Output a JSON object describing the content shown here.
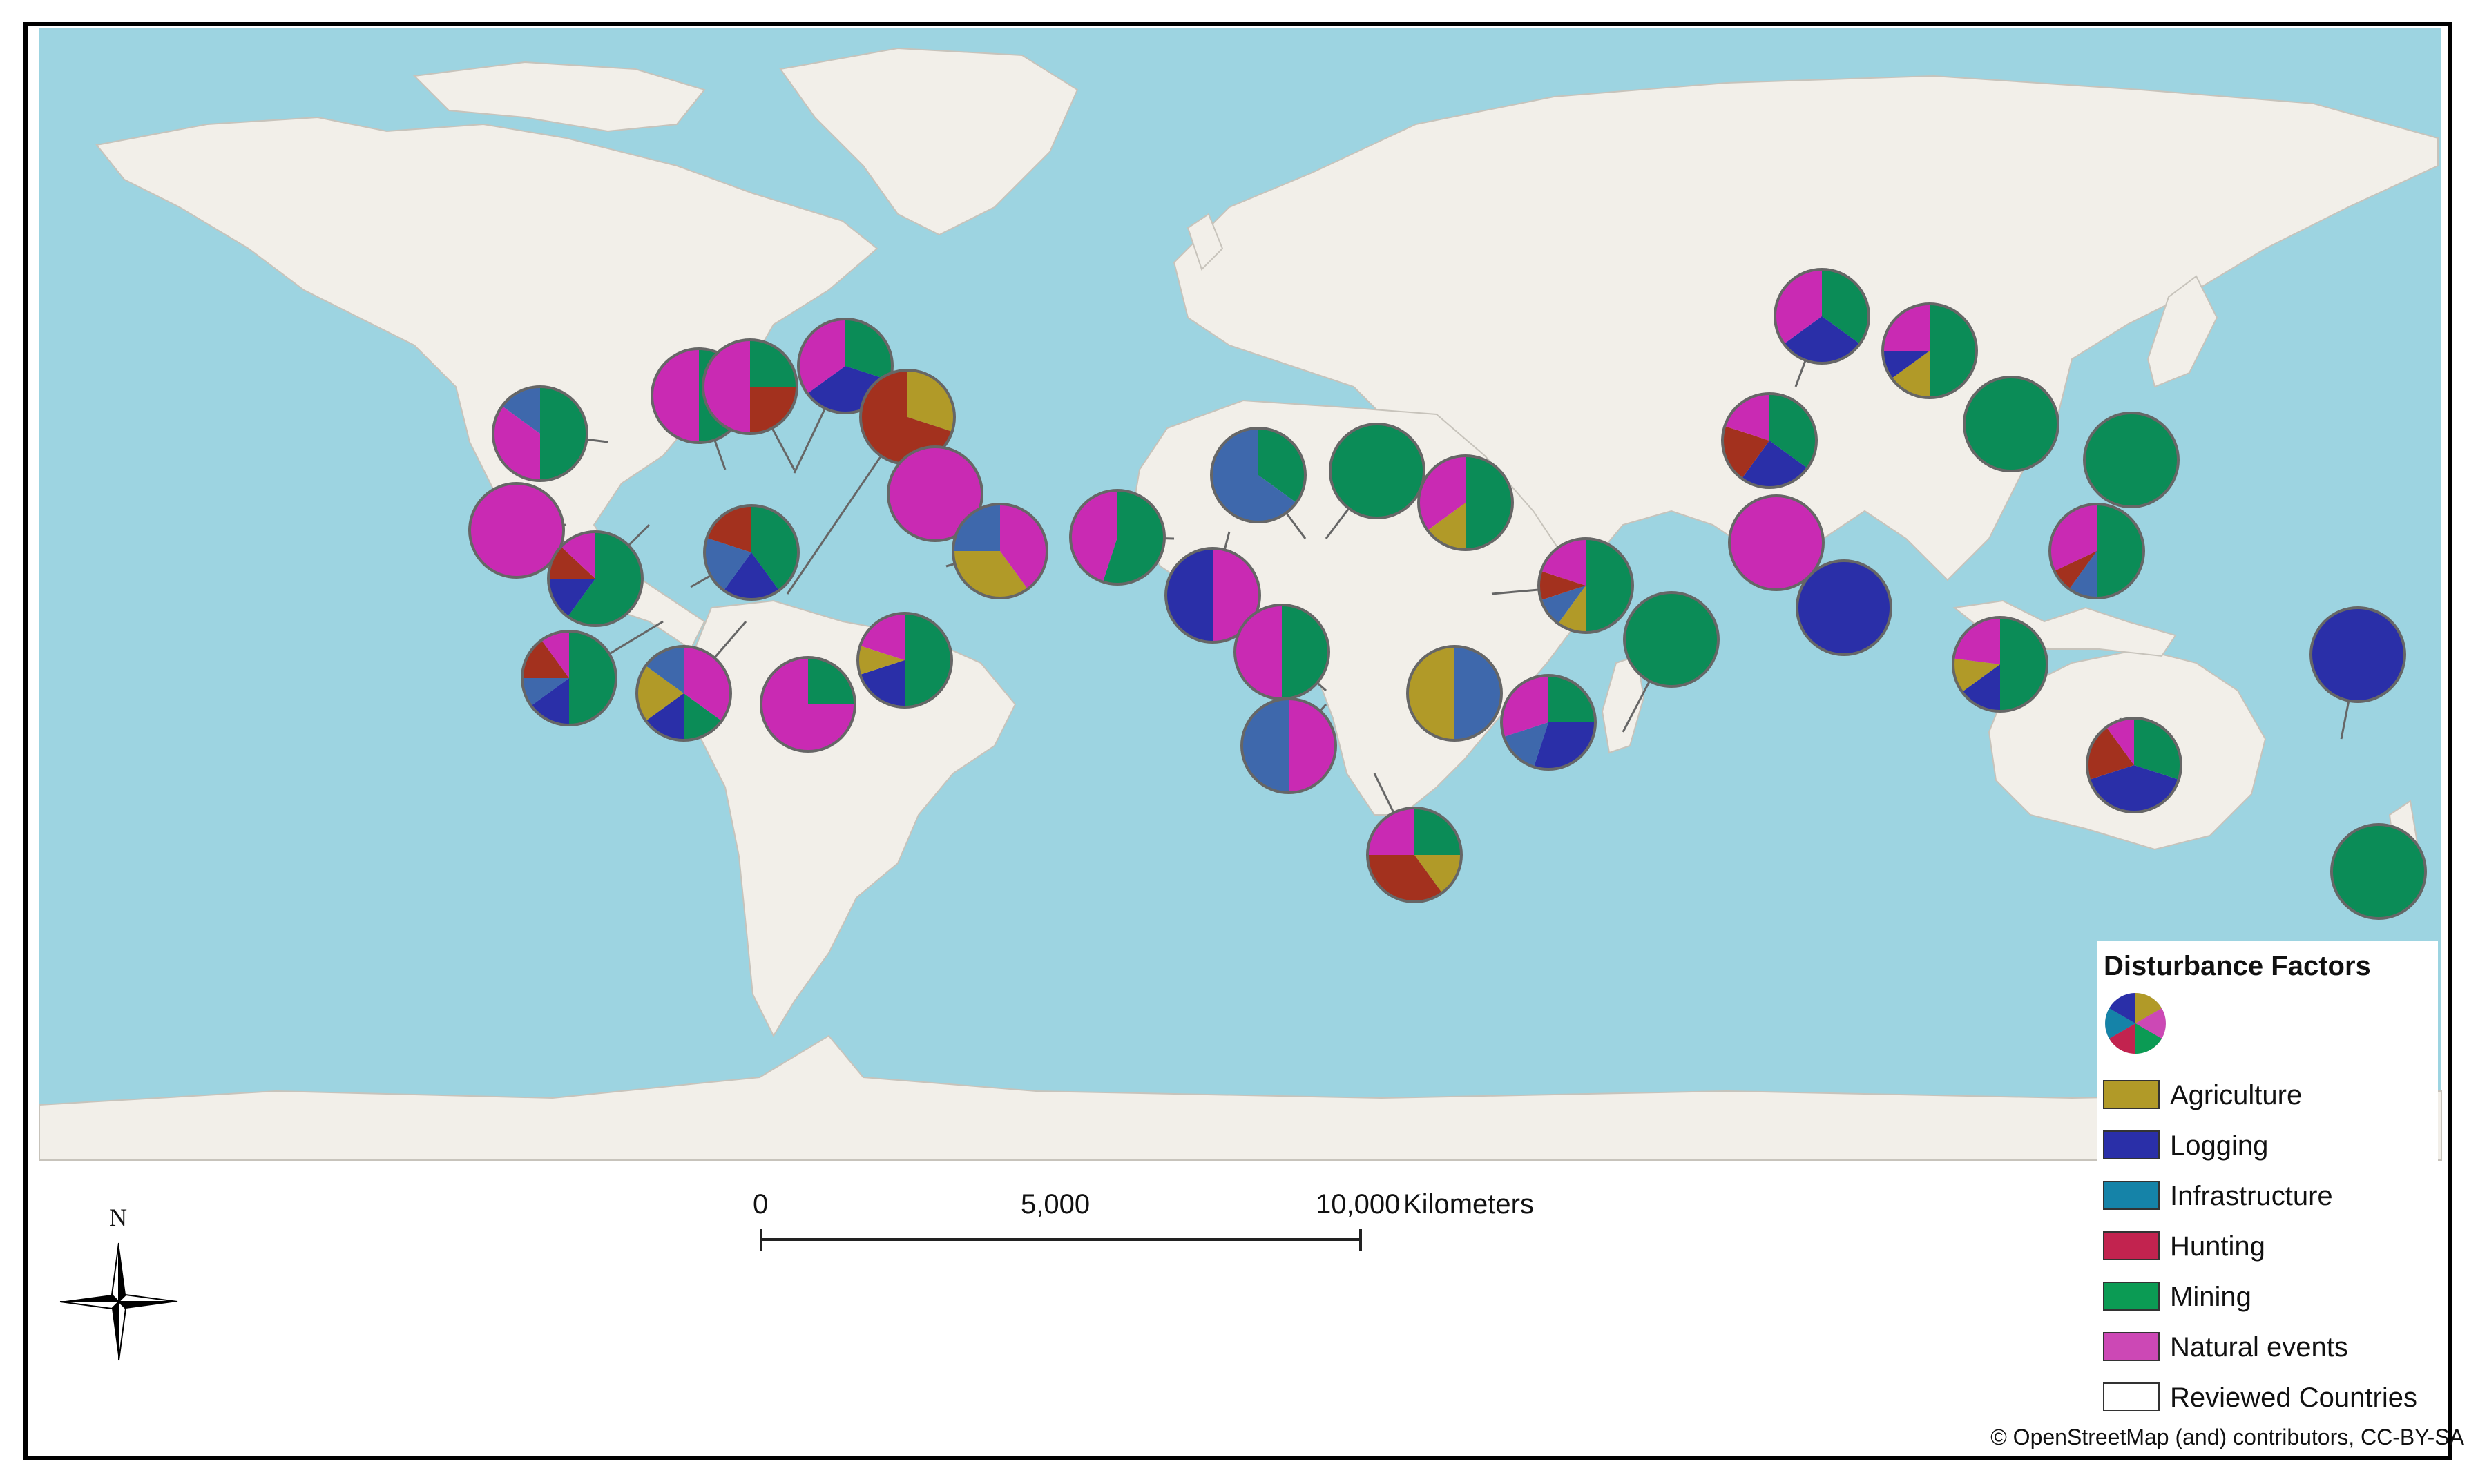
{
  "legend": {
    "title": "Disturbance Factors",
    "items": [
      {
        "label": "Agriculture",
        "color": "#b19a28"
      },
      {
        "label": "Logging",
        "color": "#2a2fa8"
      },
      {
        "label": "Infrastructure",
        "color": "#1583a8"
      },
      {
        "label": "Hunting",
        "color": "#c2234f"
      },
      {
        "label": "Mining",
        "color": "#0b9b54"
      },
      {
        "label": "Natural events",
        "color": "#cc48b5"
      },
      {
        "label": "Reviewed Countries",
        "color": "#ffffff"
      }
    ]
  },
  "scale_bar": {
    "ticks": [
      "0",
      "5,000",
      "10,000"
    ],
    "unit": "Kilometers"
  },
  "north_arrow": {
    "label": "N",
    "icon": "compass-rose-icon"
  },
  "attribution": "© OpenStreetMap (and) contributors, CC-BY-SA",
  "colors": {
    "ocean": "#9dd4e1",
    "land": "#f2efe9",
    "border": "#e3a9d6",
    "agriculture": "#b19a28",
    "logging": "#2a2fa8",
    "infra": "#3e68ac",
    "hunting": "#a3311e",
    "mining": "#0b8c57",
    "natural": "#c92ab3"
  }
}
